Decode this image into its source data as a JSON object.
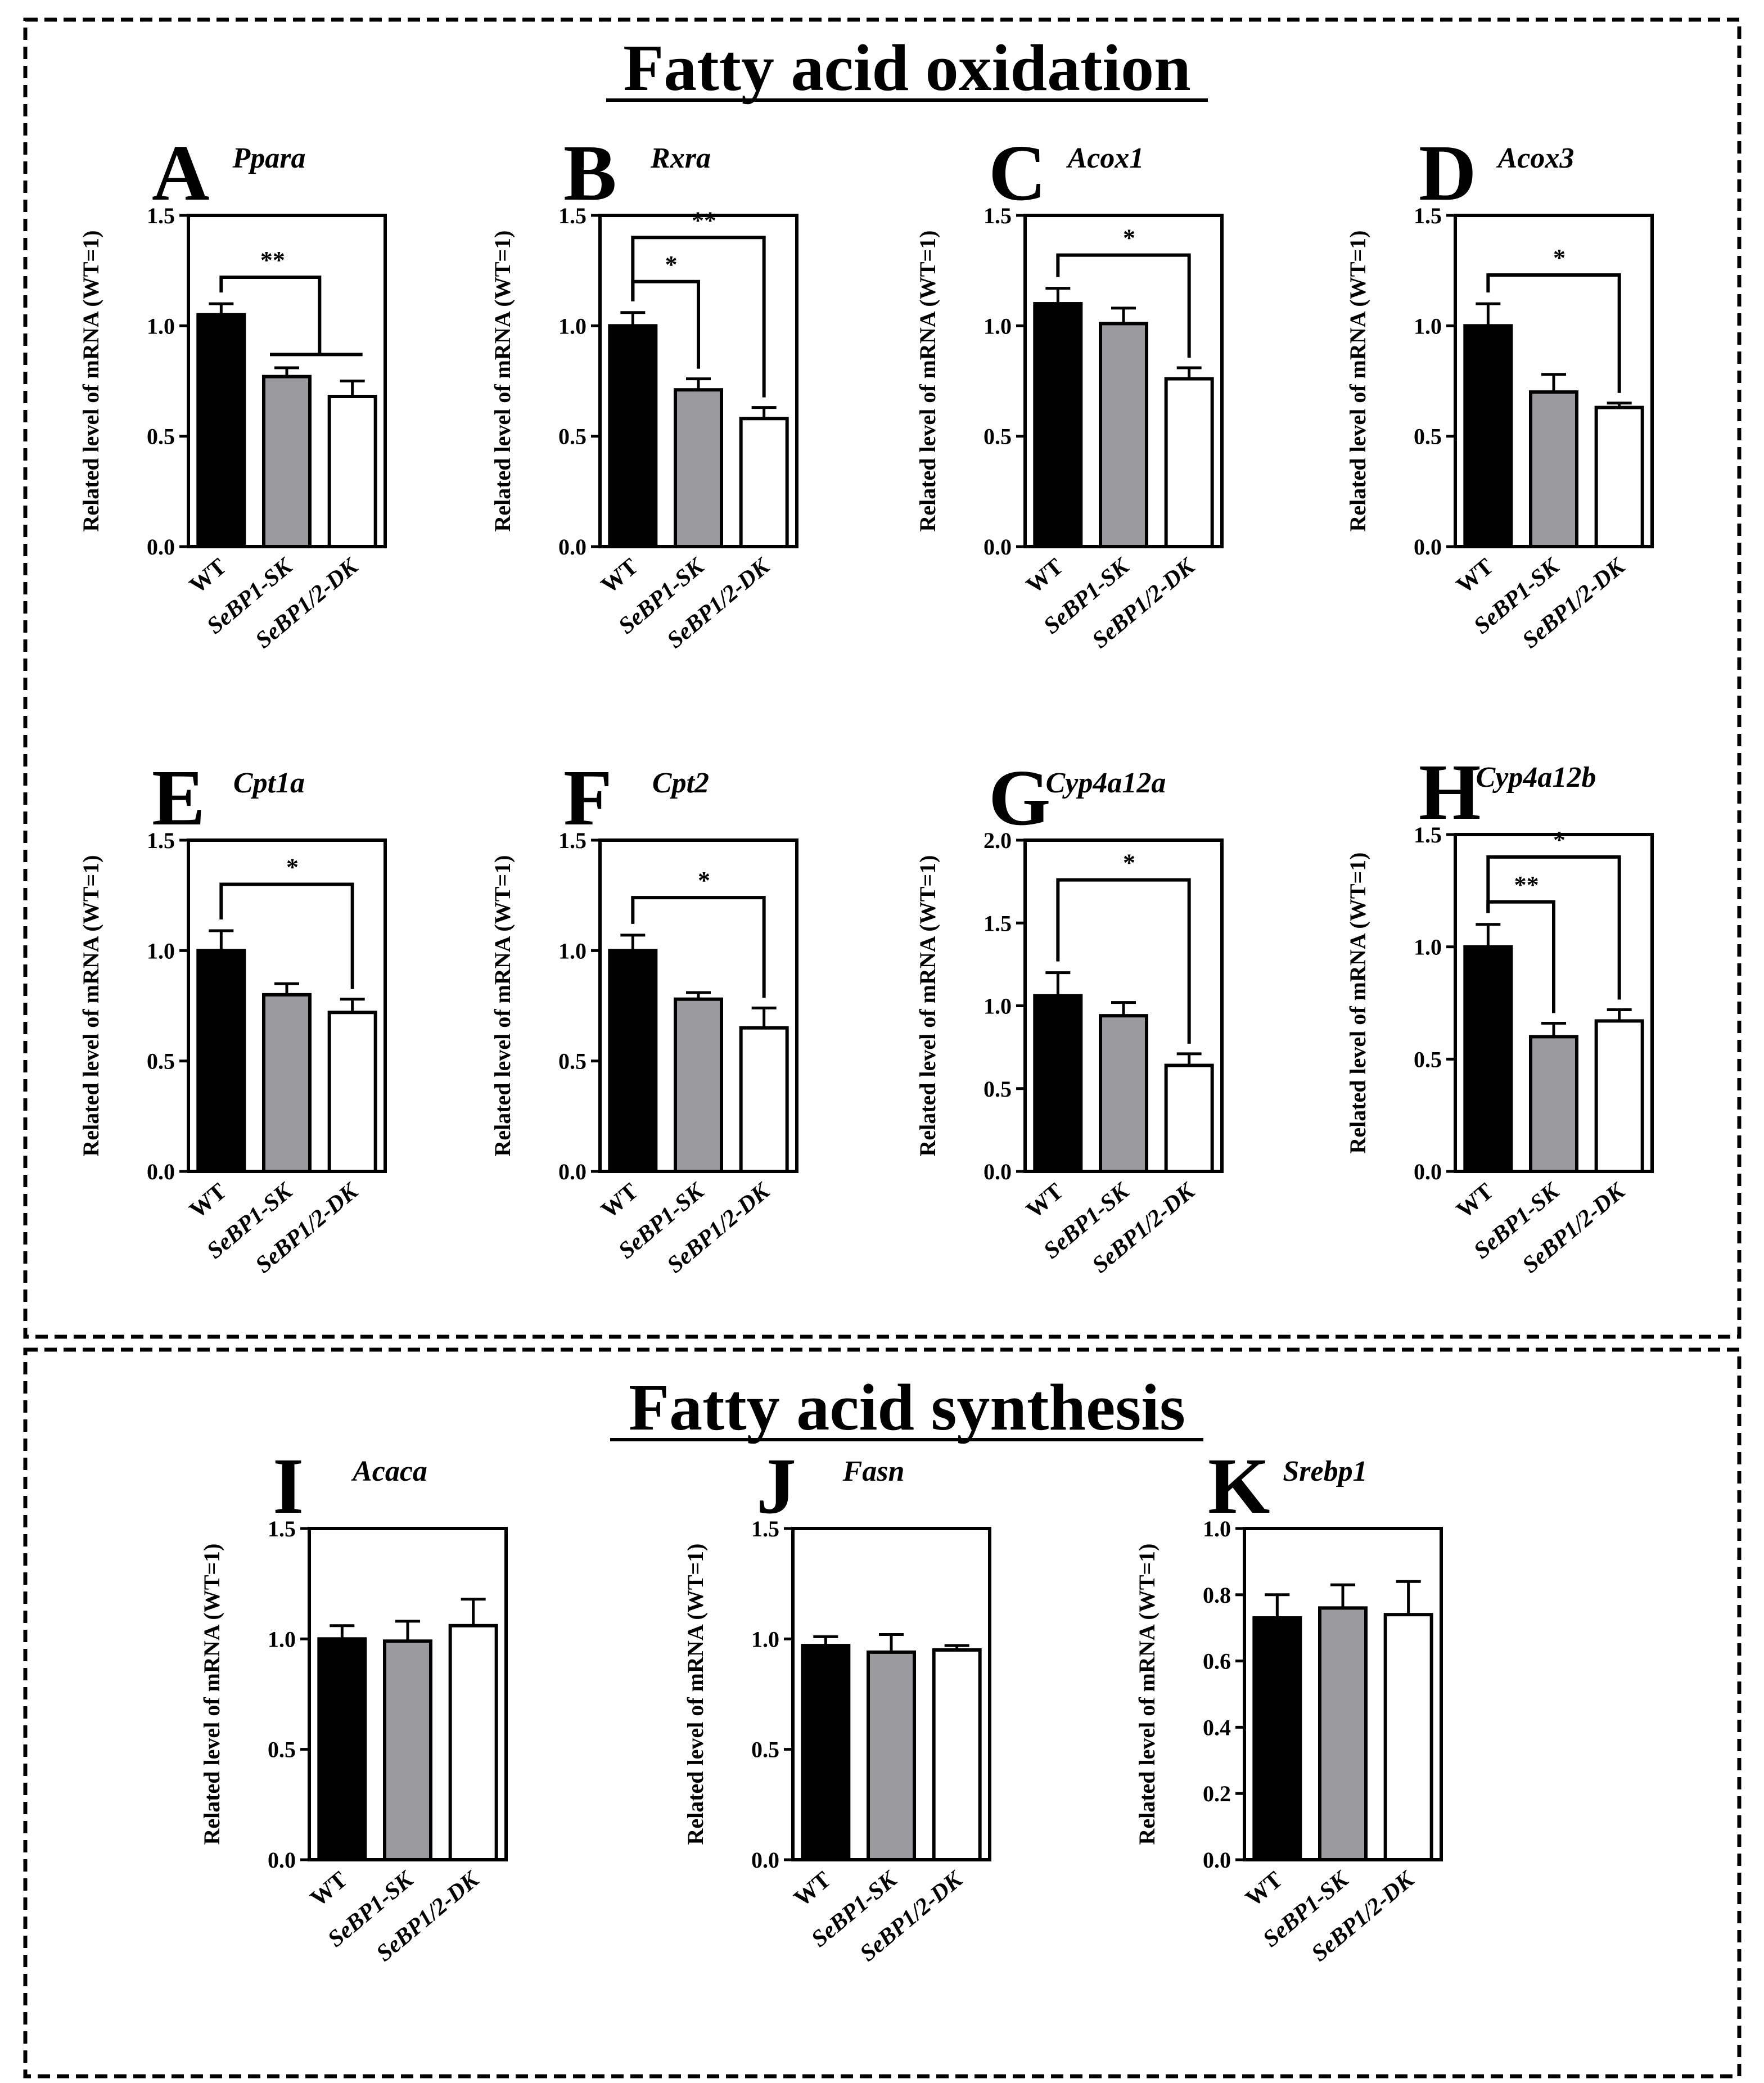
{
  "sections": [
    {
      "id": "oxidation",
      "title": "Fatty acid oxidation"
    },
    {
      "id": "synthesis",
      "title": "Fatty acid synthesis"
    }
  ],
  "categories": [
    "WT",
    "SeBP1-SK",
    "SeBP1/2-DK"
  ],
  "ylabel": "Related level of mRNA (WT=1)",
  "colors": {
    "wt": "#000000",
    "sk": "#9b9b9f",
    "dk": "#ffffff",
    "frame": "#000000"
  },
  "chart_data": [
    {
      "panel": "A",
      "gene": "Ppara",
      "type": "bar",
      "ylim": [
        0,
        1.5
      ],
      "ticks": [
        "0.0",
        "0.5",
        "1.0",
        "1.5"
      ],
      "values": [
        1.05,
        0.77,
        0.68
      ],
      "errors": [
        0.05,
        0.04,
        0.07
      ],
      "annotations": [
        {
          "label": "**",
          "kind": "group",
          "from": 0,
          "to": [
            1,
            2
          ],
          "level": 1.22
        }
      ]
    },
    {
      "panel": "B",
      "gene": "Rxra",
      "type": "bar",
      "ylim": [
        0,
        1.5
      ],
      "ticks": [
        "0.0",
        "0.5",
        "1.0",
        "1.5"
      ],
      "values": [
        1.0,
        0.71,
        0.58
      ],
      "errors": [
        0.06,
        0.05,
        0.05
      ],
      "annotations": [
        {
          "label": "*",
          "kind": "pair",
          "from": 0,
          "to": 1,
          "level": 1.2
        },
        {
          "label": "**",
          "kind": "pair",
          "from": 0,
          "to": 2,
          "level": 1.4
        }
      ]
    },
    {
      "panel": "C",
      "gene": "Acox1",
      "type": "bar",
      "ylim": [
        0,
        1.5
      ],
      "ticks": [
        "0.0",
        "0.5",
        "1.0",
        "1.5"
      ],
      "values": [
        1.1,
        1.01,
        0.76
      ],
      "errors": [
        0.07,
        0.07,
        0.05
      ],
      "annotations": [
        {
          "label": "*",
          "kind": "pair",
          "from": 0,
          "to": 2,
          "level": 1.32
        }
      ]
    },
    {
      "panel": "D",
      "gene": "Acox3",
      "type": "bar",
      "ylim": [
        0,
        1.5
      ],
      "ticks": [
        "0.0",
        "0.5",
        "1.0",
        "1.5"
      ],
      "values": [
        1.0,
        0.7,
        0.63
      ],
      "errors": [
        0.1,
        0.08,
        0.02
      ],
      "annotations": [
        {
          "label": "*",
          "kind": "pair",
          "from": 0,
          "to": 2,
          "level": 1.23
        }
      ]
    },
    {
      "panel": "E",
      "gene": "Cpt1a",
      "type": "bar",
      "ylim": [
        0,
        1.5
      ],
      "ticks": [
        "0.0",
        "0.5",
        "1.0",
        "1.5"
      ],
      "values": [
        1.0,
        0.8,
        0.72
      ],
      "errors": [
        0.09,
        0.05,
        0.06
      ],
      "annotations": [
        {
          "label": "*",
          "kind": "pair",
          "from": 0,
          "to": 2,
          "level": 1.3
        }
      ]
    },
    {
      "panel": "F",
      "gene": "Cpt2",
      "type": "bar",
      "ylim": [
        0,
        1.5
      ],
      "ticks": [
        "0.0",
        "0.5",
        "1.0",
        "1.5"
      ],
      "values": [
        1.0,
        0.78,
        0.65
      ],
      "errors": [
        0.07,
        0.03,
        0.09
      ],
      "annotations": [
        {
          "label": "*",
          "kind": "pair",
          "from": 0,
          "to": 2,
          "level": 1.24
        }
      ]
    },
    {
      "panel": "G",
      "gene": "Cyp4a12a",
      "type": "bar",
      "ylim": [
        0,
        2.0
      ],
      "ticks": [
        "0.0",
        "0.5",
        "1.0",
        "1.5",
        "2.0"
      ],
      "values": [
        1.06,
        0.94,
        0.64
      ],
      "errors": [
        0.14,
        0.08,
        0.07
      ],
      "annotations": [
        {
          "label": "*",
          "kind": "pair",
          "from": 0,
          "to": 2,
          "level": 1.76
        }
      ]
    },
    {
      "panel": "H",
      "gene": "Cyp4a12b",
      "type": "bar",
      "ylim": [
        0,
        1.5
      ],
      "ticks": [
        "0.0",
        "0.5",
        "1.0",
        "1.5"
      ],
      "values": [
        1.0,
        0.6,
        0.67
      ],
      "errors": [
        0.1,
        0.06,
        0.05
      ],
      "annotations": [
        {
          "label": "**",
          "kind": "pair",
          "from": 0,
          "to": 1,
          "level": 1.2
        },
        {
          "label": "*",
          "kind": "pair",
          "from": 0,
          "to": 2,
          "level": 1.4
        }
      ]
    },
    {
      "panel": "I",
      "gene": "Acaca",
      "type": "bar",
      "ylim": [
        0,
        1.5
      ],
      "ticks": [
        "0.0",
        "0.5",
        "1.0",
        "1.5"
      ],
      "values": [
        1.0,
        0.99,
        1.06
      ],
      "errors": [
        0.06,
        0.09,
        0.12
      ],
      "annotations": []
    },
    {
      "panel": "J",
      "gene": "Fasn",
      "type": "bar",
      "ylim": [
        0,
        1.5
      ],
      "ticks": [
        "0.0",
        "0.5",
        "1.0",
        "1.5"
      ],
      "values": [
        0.97,
        0.94,
        0.95
      ],
      "errors": [
        0.04,
        0.08,
        0.02
      ],
      "annotations": []
    },
    {
      "panel": "K",
      "gene": "Srebp1",
      "type": "bar",
      "ylim": [
        0,
        1.0
      ],
      "ticks": [
        "0.0",
        "0.2",
        "0.4",
        "0.6",
        "0.8",
        "1.0"
      ],
      "values": [
        0.73,
        0.76,
        0.74
      ],
      "errors": [
        0.07,
        0.07,
        0.1
      ],
      "annotations": []
    }
  ]
}
